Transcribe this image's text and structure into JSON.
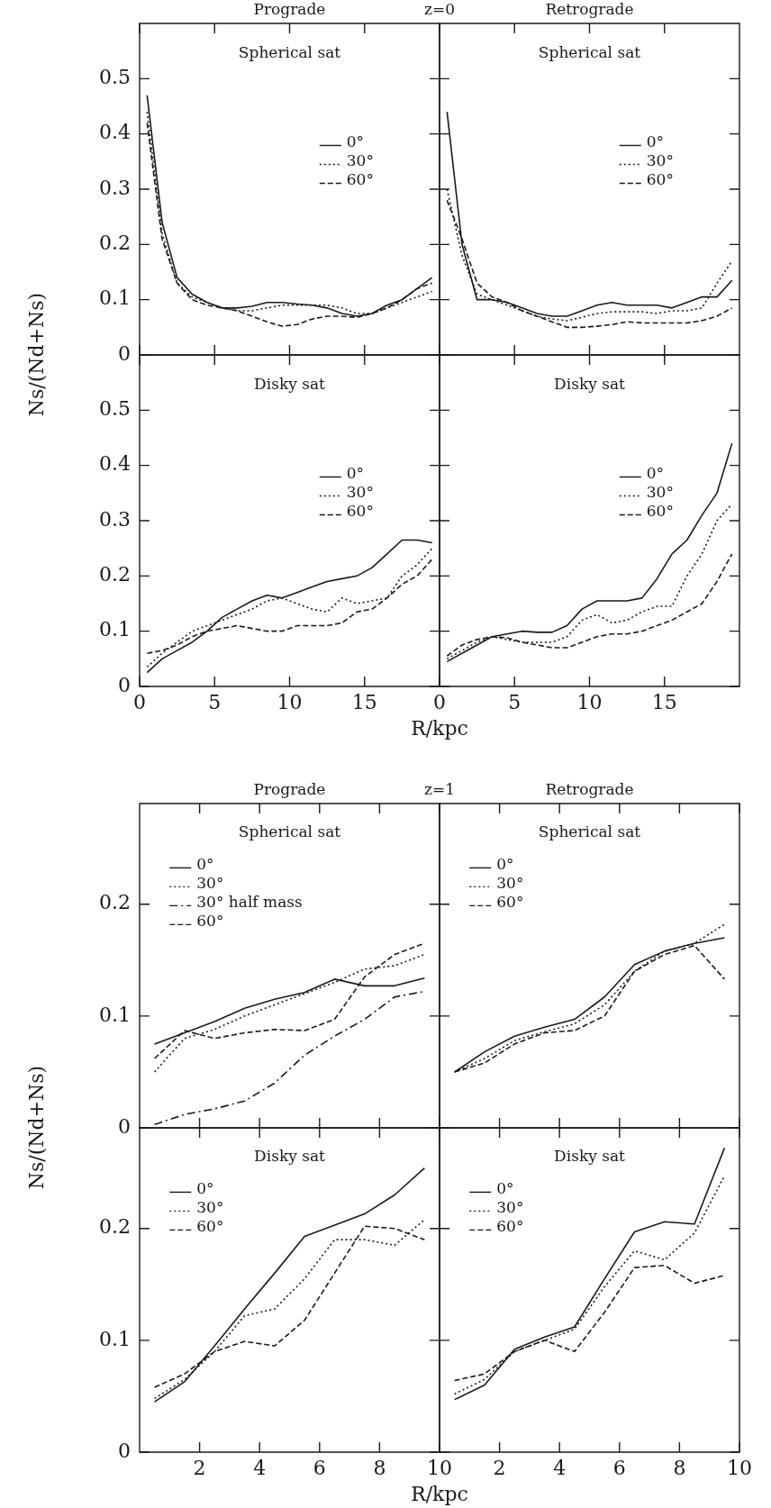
{
  "chart_data": [
    {
      "type": "line",
      "title": "Prograde",
      "subtitle": "Spherical sat",
      "ylabel": "Ns/(Nd+Ns)",
      "annotations": [
        "z=0"
      ],
      "legend": "right",
      "tick_labels": "y",
      "x": [
        0.5,
        1.5,
        2.5,
        3.5,
        4.5,
        5.5,
        6.5,
        7.5,
        8.5,
        9.5,
        10.5,
        11.5,
        12.5,
        13.5,
        14.5,
        15.5,
        16.5,
        17.5,
        18.5,
        19.5
      ],
      "xlim": [
        0,
        20
      ],
      "xticks": [
        0,
        5,
        10,
        15
      ],
      "ylim": [
        0,
        0.6
      ],
      "yticks": [
        0,
        0.1,
        0.2,
        0.3,
        0.4,
        0.5
      ],
      "series": [
        {
          "name": "0°",
          "color": "#1a1a1a",
          "line_style": "solid",
          "values": [
            0.47,
            0.24,
            0.14,
            0.11,
            0.095,
            0.085,
            0.085,
            0.088,
            0.095,
            0.095,
            0.092,
            0.09,
            0.085,
            0.075,
            0.07,
            0.075,
            0.09,
            0.1,
            0.12,
            0.14
          ]
        },
        {
          "name": "30°",
          "color": "#1a1a1a",
          "line_style": "dotted",
          "values": [
            0.44,
            0.22,
            0.13,
            0.105,
            0.095,
            0.085,
            0.08,
            0.08,
            0.085,
            0.09,
            0.09,
            0.09,
            0.09,
            0.085,
            0.075,
            0.075,
            0.085,
            0.095,
            0.105,
            0.115
          ]
        },
        {
          "name": "60°",
          "color": "#1a1a1a",
          "line_style": "dashed",
          "values": [
            0.42,
            0.21,
            0.13,
            0.1,
            0.09,
            0.085,
            0.08,
            0.07,
            0.06,
            0.052,
            0.055,
            0.065,
            0.07,
            0.07,
            0.068,
            0.075,
            0.085,
            0.1,
            0.12,
            0.13
          ]
        }
      ]
    },
    {
      "type": "line",
      "title": "Retrograde",
      "subtitle": "Spherical sat",
      "legend": "right",
      "tick_labels": false,
      "x": [
        0.5,
        1.5,
        2.5,
        3.5,
        4.5,
        5.5,
        6.5,
        7.5,
        8.5,
        9.5,
        10.5,
        11.5,
        12.5,
        13.5,
        14.5,
        15.5,
        16.5,
        17.5,
        18.5,
        19.5
      ],
      "xlim": [
        0,
        20
      ],
      "xticks": [
        0,
        5,
        10,
        15
      ],
      "ylim": [
        0,
        0.6
      ],
      "yticks": [
        0,
        0.1,
        0.2,
        0.3,
        0.4,
        0.5
      ],
      "series": [
        {
          "name": "0°",
          "color": "#1a1a1a",
          "line_style": "solid",
          "values": [
            0.44,
            0.2,
            0.1,
            0.1,
            0.095,
            0.085,
            0.075,
            0.07,
            0.07,
            0.08,
            0.09,
            0.095,
            0.09,
            0.09,
            0.09,
            0.085,
            0.095,
            0.105,
            0.105,
            0.135
          ]
        },
        {
          "name": "30°",
          "color": "#1a1a1a",
          "line_style": "dotted",
          "values": [
            0.3,
            0.18,
            0.11,
            0.1,
            0.09,
            0.08,
            0.07,
            0.065,
            0.062,
            0.068,
            0.075,
            0.078,
            0.078,
            0.078,
            0.075,
            0.08,
            0.08,
            0.085,
            0.13,
            0.17
          ]
        },
        {
          "name": "60°",
          "color": "#1a1a1a",
          "line_style": "dashed",
          "values": [
            0.28,
            0.21,
            0.13,
            0.105,
            0.095,
            0.08,
            0.07,
            0.06,
            0.05,
            0.05,
            0.052,
            0.055,
            0.06,
            0.058,
            0.058,
            0.058,
            0.058,
            0.062,
            0.07,
            0.085
          ]
        }
      ]
    },
    {
      "type": "line",
      "subtitle": "Disky sat",
      "xlabel": "R/kpc",
      "legend": "right",
      "x": [
        0.5,
        1.5,
        2.5,
        3.5,
        4.5,
        5.5,
        6.5,
        7.5,
        8.5,
        9.5,
        10.5,
        11.5,
        12.5,
        13.5,
        14.5,
        15.5,
        16.5,
        17.5,
        18.5,
        19.5
      ],
      "xlim": [
        0,
        20
      ],
      "xticks": [
        0,
        5,
        10,
        15
      ],
      "ylim": [
        0,
        0.6
      ],
      "yticks": [
        0,
        0.1,
        0.2,
        0.3,
        0.4,
        0.5
      ],
      "series": [
        {
          "name": "0°",
          "color": "#1a1a1a",
          "line_style": "solid",
          "values": [
            0.025,
            0.05,
            0.065,
            0.08,
            0.1,
            0.125,
            0.14,
            0.155,
            0.165,
            0.16,
            0.17,
            0.18,
            0.19,
            0.195,
            0.2,
            0.215,
            0.24,
            0.265,
            0.265,
            0.26
          ]
        },
        {
          "name": "30°",
          "color": "#1a1a1a",
          "line_style": "dotted",
          "values": [
            0.035,
            0.06,
            0.08,
            0.1,
            0.11,
            0.12,
            0.13,
            0.14,
            0.155,
            0.16,
            0.15,
            0.14,
            0.135,
            0.16,
            0.15,
            0.155,
            0.16,
            0.2,
            0.22,
            0.25
          ]
        },
        {
          "name": "60°",
          "color": "#1a1a1a",
          "line_style": "dashed",
          "values": [
            0.06,
            0.065,
            0.075,
            0.09,
            0.1,
            0.105,
            0.11,
            0.105,
            0.1,
            0.1,
            0.11,
            0.11,
            0.11,
            0.115,
            0.135,
            0.14,
            0.16,
            0.185,
            0.2,
            0.23
          ]
        }
      ]
    },
    {
      "type": "line",
      "subtitle": "Disky sat",
      "legend": "right",
      "tick_labels": "x",
      "x": [
        0.5,
        1.5,
        2.5,
        3.5,
        4.5,
        5.5,
        6.5,
        7.5,
        8.5,
        9.5,
        10.5,
        11.5,
        12.5,
        13.5,
        14.5,
        15.5,
        16.5,
        17.5,
        18.5,
        19.5
      ],
      "xlim": [
        0,
        20
      ],
      "xticks": [
        0,
        5,
        10,
        15
      ],
      "ylim": [
        0,
        0.6
      ],
      "yticks": [
        0,
        0.1,
        0.2,
        0.3,
        0.4,
        0.5
      ],
      "series": [
        {
          "name": "0°",
          "color": "#1a1a1a",
          "line_style": "solid",
          "values": [
            0.045,
            0.06,
            0.075,
            0.09,
            0.095,
            0.1,
            0.098,
            0.098,
            0.11,
            0.14,
            0.155,
            0.155,
            0.155,
            0.16,
            0.195,
            0.24,
            0.265,
            0.31,
            0.35,
            0.44
          ]
        },
        {
          "name": "30°",
          "color": "#1a1a1a",
          "line_style": "dotted",
          "values": [
            0.05,
            0.065,
            0.08,
            0.09,
            0.085,
            0.08,
            0.08,
            0.08,
            0.09,
            0.12,
            0.13,
            0.115,
            0.12,
            0.135,
            0.145,
            0.145,
            0.2,
            0.24,
            0.3,
            0.33
          ]
        },
        {
          "name": "60°",
          "color": "#1a1a1a",
          "line_style": "dashed",
          "values": [
            0.055,
            0.075,
            0.085,
            0.09,
            0.088,
            0.08,
            0.075,
            0.07,
            0.07,
            0.08,
            0.09,
            0.095,
            0.095,
            0.1,
            0.11,
            0.12,
            0.135,
            0.15,
            0.19,
            0.24
          ]
        }
      ]
    },
    {
      "type": "line",
      "title": "Prograde",
      "subtitle": "Spherical sat",
      "ylabel": "Ns/(Nd+Ns)",
      "annotations": [
        "z=1"
      ],
      "legend": "top left",
      "tick_labels": "y",
      "x": [
        0.5,
        1.5,
        2.5,
        3.5,
        4.5,
        5.5,
        6.5,
        7.5,
        8.5,
        9.5
      ],
      "xlim": [
        0,
        10
      ],
      "xticks": [
        2,
        4,
        6,
        8,
        10
      ],
      "ylim": [
        0,
        0.29
      ],
      "yticks": [
        0,
        0.1,
        0.2
      ],
      "series": [
        {
          "name": "0°",
          "color": "#1a1a1a",
          "line_style": "solid",
          "values": [
            0.075,
            0.085,
            0.095,
            0.107,
            0.115,
            0.121,
            0.133,
            0.127,
            0.127,
            0.134
          ]
        },
        {
          "name": "30°",
          "color": "#1a1a1a",
          "line_style": "dotted",
          "values": [
            0.05,
            0.08,
            0.088,
            0.1,
            0.11,
            0.12,
            0.13,
            0.142,
            0.145,
            0.155
          ]
        },
        {
          "name": "30° half mass",
          "color": "#1a1a1a",
          "line_style": "dashdot",
          "values": [
            0.003,
            0.012,
            0.017,
            0.024,
            0.04,
            0.065,
            0.082,
            0.097,
            0.117,
            0.122
          ]
        },
        {
          "name": "60°",
          "color": "#1a1a1a",
          "line_style": "dashed",
          "values": [
            0.062,
            0.087,
            0.08,
            0.085,
            0.088,
            0.087,
            0.097,
            0.135,
            0.155,
            0.165
          ]
        }
      ]
    },
    {
      "type": "line",
      "title": "Retrograde",
      "subtitle": "Spherical sat",
      "legend": "top left",
      "tick_labels": false,
      "x": [
        0.5,
        1.5,
        2.5,
        3.5,
        4.5,
        5.5,
        6.5,
        7.5,
        8.5,
        9.5
      ],
      "xlim": [
        0,
        10
      ],
      "xticks": [
        2,
        4,
        6,
        8,
        10
      ],
      "ylim": [
        0,
        0.29
      ],
      "yticks": [
        0,
        0.1,
        0.2
      ],
      "series": [
        {
          "name": "0°",
          "color": "#1a1a1a",
          "line_style": "solid",
          "values": [
            0.05,
            0.068,
            0.082,
            0.09,
            0.097,
            0.117,
            0.146,
            0.158,
            0.165,
            0.17
          ]
        },
        {
          "name": "30°",
          "color": "#1a1a1a",
          "line_style": "dotted",
          "values": [
            0.05,
            0.062,
            0.078,
            0.086,
            0.093,
            0.11,
            0.14,
            0.158,
            0.165,
            0.182
          ]
        },
        {
          "name": "60°",
          "color": "#1a1a1a",
          "line_style": "dashed",
          "values": [
            0.05,
            0.058,
            0.075,
            0.085,
            0.087,
            0.1,
            0.14,
            0.155,
            0.163,
            0.133
          ]
        }
      ]
    },
    {
      "type": "line",
      "subtitle": "Disky sat",
      "xlabel": "R/kpc",
      "legend": "top left",
      "x": [
        0.5,
        1.5,
        2.5,
        3.5,
        4.5,
        5.5,
        6.5,
        7.5,
        8.5,
        9.5
      ],
      "xlim": [
        0,
        10
      ],
      "xticks": [
        2,
        4,
        6,
        8,
        10
      ],
      "ylim": [
        0,
        0.29
      ],
      "yticks": [
        0,
        0.1,
        0.2
      ],
      "series": [
        {
          "name": "0°",
          "color": "#1a1a1a",
          "line_style": "solid",
          "values": [
            0.045,
            0.063,
            0.095,
            0.128,
            0.16,
            0.193,
            0.203,
            0.213,
            0.23,
            0.254
          ]
        },
        {
          "name": "30°",
          "color": "#1a1a1a",
          "line_style": "dotted",
          "values": [
            0.048,
            0.065,
            0.09,
            0.122,
            0.128,
            0.155,
            0.19,
            0.19,
            0.185,
            0.208
          ]
        },
        {
          "name": "60°",
          "color": "#1a1a1a",
          "line_style": "dashed",
          "values": [
            0.058,
            0.07,
            0.09,
            0.099,
            0.095,
            0.118,
            0.16,
            0.202,
            0.2,
            0.19
          ]
        }
      ]
    },
    {
      "type": "line",
      "subtitle": "Disky sat",
      "legend": "top left",
      "tick_labels": "x",
      "x": [
        0.5,
        1.5,
        2.5,
        3.5,
        4.5,
        5.5,
        6.5,
        7.5,
        8.5,
        9.5
      ],
      "xlim": [
        0,
        10
      ],
      "xticks": [
        2,
        4,
        6,
        8,
        10
      ],
      "ylim": [
        0,
        0.29
      ],
      "yticks": [
        0,
        0.1,
        0.2
      ],
      "series": [
        {
          "name": "0°",
          "color": "#1a1a1a",
          "line_style": "solid",
          "values": [
            0.047,
            0.06,
            0.092,
            0.103,
            0.112,
            0.155,
            0.197,
            0.206,
            0.204,
            0.272
          ]
        },
        {
          "name": "30°",
          "color": "#1a1a1a",
          "line_style": "dotted",
          "values": [
            0.052,
            0.065,
            0.09,
            0.1,
            0.11,
            0.148,
            0.18,
            0.172,
            0.196,
            0.247
          ]
        },
        {
          "name": "60°",
          "color": "#1a1a1a",
          "line_style": "dashed",
          "values": [
            0.064,
            0.07,
            0.09,
            0.1,
            0.09,
            0.125,
            0.165,
            0.167,
            0.151,
            0.158
          ]
        }
      ]
    }
  ]
}
